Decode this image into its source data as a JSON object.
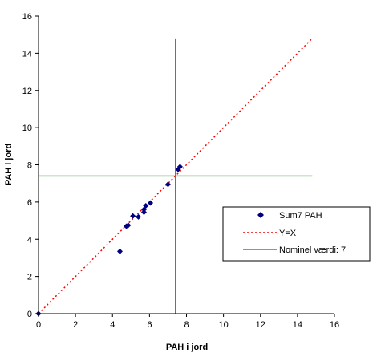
{
  "chart_data": {
    "type": "scatter",
    "xlabel": "PAH i jord",
    "ylabel": "PAH i jord",
    "xlim": [
      0,
      16
    ],
    "ylim": [
      0,
      16
    ],
    "xticks": [
      "0",
      "2",
      "4",
      "6",
      "8",
      "10",
      "12",
      "14",
      "16"
    ],
    "yticks": [
      "0",
      "2",
      "4",
      "6",
      "8",
      "10",
      "12",
      "14",
      "16"
    ],
    "grid": false,
    "legend_position": "right",
    "series": [
      {
        "name": "Sum7 PAH",
        "type": "scatter",
        "marker": "diamond",
        "color": "#000080",
        "points": [
          [
            0,
            0
          ],
          [
            4.4,
            3.35
          ],
          [
            4.75,
            4.7
          ],
          [
            4.85,
            4.75
          ],
          [
            5.1,
            5.25
          ],
          [
            5.4,
            5.2
          ],
          [
            5.7,
            5.45
          ],
          [
            5.7,
            5.6
          ],
          [
            5.8,
            5.8
          ],
          [
            6.05,
            5.95
          ],
          [
            7.0,
            6.95
          ],
          [
            7.55,
            7.75
          ],
          [
            7.65,
            7.9
          ]
        ]
      },
      {
        "name": "Y=X",
        "type": "line",
        "style": "dotted",
        "color": "#ff0000",
        "points": [
          [
            0,
            0
          ],
          [
            14.8,
            14.8
          ]
        ]
      },
      {
        "name": "Nominel værdi:  7",
        "type": "line",
        "style": "solid",
        "color": "#339933",
        "segments": [
          [
            [
              7.4,
              0
            ],
            [
              7.4,
              14.8
            ]
          ],
          [
            [
              0,
              7.4
            ],
            [
              14.8,
              7.4
            ]
          ]
        ]
      }
    ]
  }
}
